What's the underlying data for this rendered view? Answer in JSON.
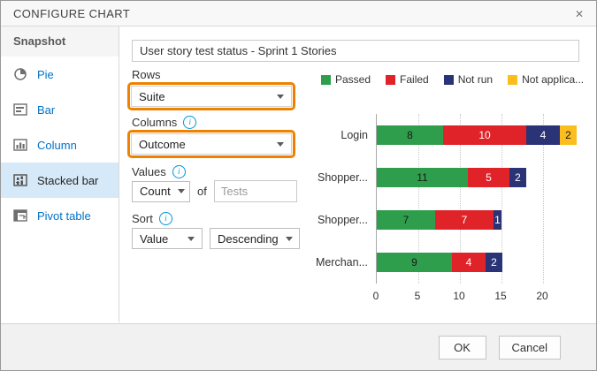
{
  "dialog": {
    "title": "CONFIGURE CHART"
  },
  "icons": {
    "close_glyph": "✕",
    "info_glyph": "i"
  },
  "sidebar": {
    "header": "Snapshot",
    "items": [
      {
        "label": "Pie",
        "icon": "pie-chart-icon",
        "selected": false
      },
      {
        "label": "Bar",
        "icon": "bar-chart-icon",
        "selected": false
      },
      {
        "label": "Column",
        "icon": "column-chart-icon",
        "selected": false
      },
      {
        "label": "Stacked bar",
        "icon": "stacked-bar-chart-icon",
        "selected": true
      },
      {
        "label": "Pivot table",
        "icon": "pivot-table-icon",
        "selected": false
      }
    ]
  },
  "form": {
    "chart_title_value": "User story test status - Sprint 1 Stories",
    "rows": {
      "label": "Rows",
      "value": "Suite",
      "highlighted": true
    },
    "columns": {
      "label": "Columns",
      "value": "Outcome",
      "highlighted": true,
      "has_info": true
    },
    "values": {
      "label": "Values",
      "aggregation": "Count",
      "connector": "of",
      "field_placeholder": "Tests",
      "has_info": true
    },
    "sort": {
      "label": "Sort",
      "by": "Value",
      "direction": "Descending",
      "has_info": true
    }
  },
  "chart_data": {
    "type": "bar",
    "stacked": true,
    "orientation": "horizontal",
    "title": "",
    "categories": [
      "Login",
      "Shopper...",
      "Shopper...",
      "Merchan..."
    ],
    "series": [
      {
        "name": "Passed",
        "color": "#2f9e4c",
        "label_color": "#1a1a1a",
        "values": [
          8,
          11,
          7,
          9
        ]
      },
      {
        "name": "Failed",
        "color": "#e02329",
        "label_color": "#ffffff",
        "values": [
          10,
          5,
          7,
          4
        ]
      },
      {
        "name": "Not run",
        "color": "#2b3377",
        "label_color": "#ffffff",
        "values": [
          4,
          2,
          1,
          2
        ]
      },
      {
        "name": "Not applica...",
        "color": "#fbbe1e",
        "label_color": "#1a1a1a",
        "values": [
          2,
          0,
          0,
          0
        ]
      }
    ],
    "x_ticks": [
      0,
      5,
      10,
      15,
      20
    ],
    "xlim": [
      0,
      25
    ],
    "grid": "dotted-vertical",
    "legend_position": "top",
    "show_value_labels": true
  },
  "footer": {
    "ok_label": "OK",
    "cancel_label": "Cancel"
  },
  "colors": {
    "accent_blue": "#0072c6",
    "highlight_orange": "#ee8200",
    "selected_item_bg": "#d6e9f8",
    "passed_green": "#2f9e4c",
    "failed_red": "#e02329",
    "not_run_navy": "#2b3377",
    "not_applicable_yellow": "#fbbe1e"
  }
}
